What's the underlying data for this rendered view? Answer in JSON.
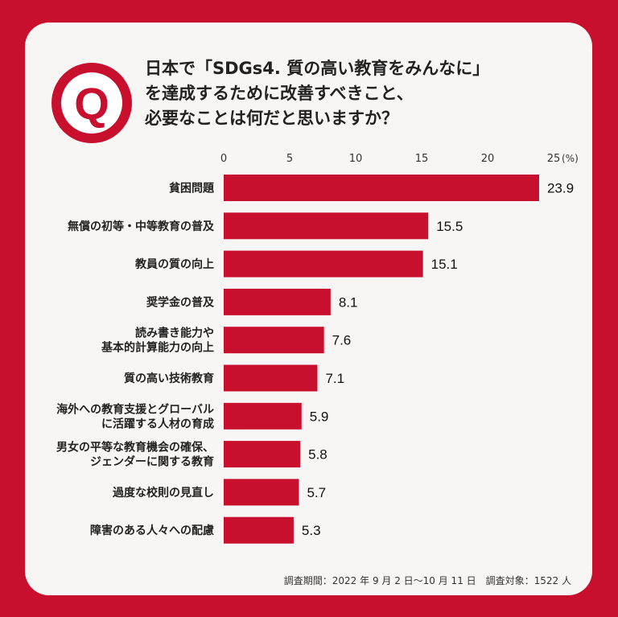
{
  "question": {
    "badge": "Q",
    "lines": [
      "日本で「SDGs4. 質の高い教育をみんなに」",
      "を達成するために改善すべきこと、",
      "必要なことは何だと思いますか？"
    ]
  },
  "footnote": "調査期間：2022 年 9 月 2 日〜10 月 11 日　調査対象：1522 人",
  "colors": {
    "accent": "#c8102e",
    "card": "#f7f6f4"
  },
  "chart_data": {
    "type": "bar",
    "orientation": "horizontal",
    "unit_label": "(%)",
    "xlim": [
      0,
      25
    ],
    "ticks": [
      0,
      5,
      10,
      15,
      20,
      25
    ],
    "categories": [
      [
        "貧困問題"
      ],
      [
        "無償の初等・中等教育の普及"
      ],
      [
        "教員の質の向上"
      ],
      [
        "奨学金の普及"
      ],
      [
        "読み書き能力や",
        "基本的計算能力の向上"
      ],
      [
        "質の高い技術教育"
      ],
      [
        "海外への教育支援とグローバル",
        "に活躍する人材の育成"
      ],
      [
        "男女の平等な教育機会の確保、",
        "ジェンダーに関する教育"
      ],
      [
        "過度な校則の見直し"
      ],
      [
        "障害のある人々への配慮"
      ]
    ],
    "values": [
      23.9,
      15.5,
      15.1,
      8.1,
      7.6,
      7.1,
      5.9,
      5.8,
      5.7,
      5.3
    ],
    "value_labels": [
      "23.9",
      "15.5",
      "15.1",
      "8.1",
      "7.6",
      "7.1",
      "5.9",
      "5.8",
      "5.7",
      "5.3"
    ]
  }
}
